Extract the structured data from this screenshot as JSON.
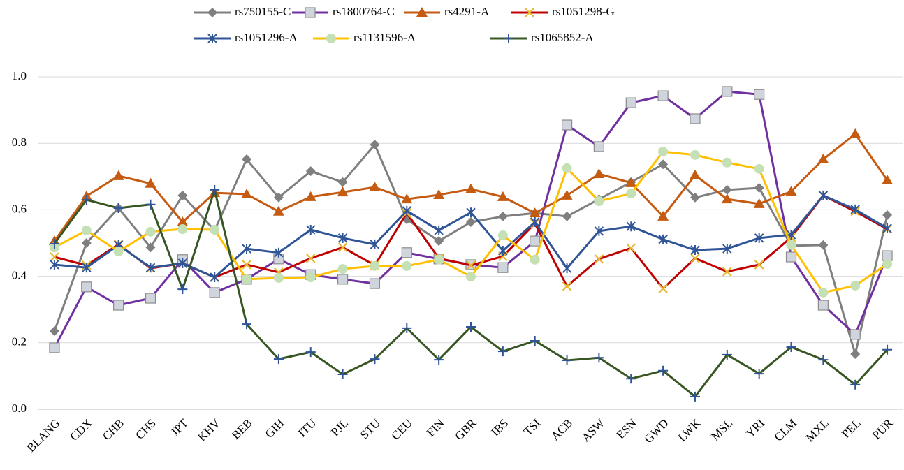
{
  "chart_data": {
    "type": "line",
    "categories": [
      "BLANG",
      "CDX",
      "CHB",
      "CHS",
      "JPT",
      "KHV",
      "BEB",
      "GIH",
      "ITU",
      "PJL",
      "STU",
      "CEU",
      "FIN",
      "GBR",
      "IBS",
      "TSI",
      "ACB",
      "ASW",
      "ESN",
      "GWD",
      "LWK",
      "MSL",
      "YRI",
      "CLM",
      "MXL",
      "PEL",
      "PUR"
    ],
    "ylim": [
      0,
      1
    ],
    "yticks": [
      {
        "value": 0,
        "label": "0.0"
      },
      0.2,
      0.4,
      0.6,
      0.8,
      {
        "value": 1,
        "label": "1.0"
      }
    ],
    "grid": true,
    "legend": "top",
    "series": [
      {
        "name": "rs750155-C",
        "color": "#7f7f7f",
        "marker": "diamond",
        "marker_color": "#7f7f7f",
        "values": [
          0.235,
          0.5,
          0.605,
          0.487,
          0.643,
          0.538,
          0.752,
          0.637,
          0.716,
          0.683,
          0.796,
          0.571,
          0.506,
          0.563,
          0.58,
          0.59,
          0.58,
          0.632,
          0.683,
          0.737,
          0.637,
          0.66,
          0.666,
          0.492,
          0.494,
          0.166,
          0.584
        ]
      },
      {
        "name": "rs1800764-C",
        "color": "#7030a0",
        "marker": "square",
        "marker_color": "#d0d4dc",
        "values": [
          0.185,
          0.368,
          0.313,
          0.334,
          0.45,
          0.351,
          0.391,
          0.452,
          0.405,
          0.391,
          0.378,
          0.471,
          0.452,
          0.435,
          0.426,
          0.506,
          0.855,
          0.79,
          0.922,
          0.943,
          0.874,
          0.956,
          0.947,
          0.458,
          0.313,
          0.225,
          0.462
        ]
      },
      {
        "name": "rs4291-A",
        "color": "#c55a11",
        "marker": "triangle",
        "marker_color": "#c55a11",
        "values": [
          0.506,
          0.641,
          0.702,
          0.679,
          0.563,
          0.651,
          0.647,
          0.595,
          0.639,
          0.653,
          0.668,
          0.632,
          0.645,
          0.662,
          0.639,
          0.59,
          0.643,
          0.708,
          0.681,
          0.58,
          0.704,
          0.632,
          0.618,
          0.655,
          0.752,
          0.828,
          0.689
        ]
      },
      {
        "name": "rs1051298-G",
        "color": "#c00000",
        "marker": "x",
        "marker_color": "#e8b830",
        "values": [
          0.458,
          0.433,
          0.496,
          0.424,
          0.439,
          0.397,
          0.435,
          0.412,
          0.454,
          0.487,
          0.433,
          0.59,
          0.454,
          0.433,
          0.46,
          0.559,
          0.37,
          0.452,
          0.485,
          0.363,
          0.454,
          0.414,
          0.435,
          0.517,
          0.643,
          0.595,
          0.542
        ]
      },
      {
        "name": "rs1051296-A",
        "color": "#2f5597",
        "marker": "star",
        "marker_color": "#2f5597",
        "values": [
          0.435,
          0.426,
          0.494,
          0.426,
          0.439,
          0.397,
          0.483,
          0.471,
          0.54,
          0.515,
          0.496,
          0.597,
          0.538,
          0.592,
          0.477,
          0.563,
          0.424,
          0.536,
          0.55,
          0.511,
          0.479,
          0.483,
          0.515,
          0.525,
          0.643,
          0.601,
          0.544
        ]
      },
      {
        "name": "rs1131596-A",
        "color": "#ffc000",
        "marker": "circle",
        "marker_color": "#c5e0b4",
        "values": [
          0.487,
          0.538,
          0.475,
          0.534,
          0.542,
          0.54,
          0.391,
          0.395,
          0.397,
          0.422,
          0.431,
          0.431,
          0.45,
          0.399,
          0.523,
          0.45,
          0.725,
          0.626,
          0.649,
          0.775,
          0.765,
          0.742,
          0.723,
          0.494,
          0.351,
          0.372,
          0.437
        ]
      },
      {
        "name": "rs1065852-A",
        "color": "#375623",
        "marker": "plus",
        "marker_color": "#2f5597",
        "values": [
          0.498,
          0.63,
          0.605,
          0.616,
          0.361,
          0.66,
          0.256,
          0.151,
          0.172,
          0.105,
          0.151,
          0.244,
          0.149,
          0.248,
          0.174,
          0.206,
          0.147,
          0.155,
          0.092,
          0.116,
          0.038,
          0.164,
          0.107,
          0.187,
          0.149,
          0.074,
          0.179
        ]
      }
    ]
  }
}
